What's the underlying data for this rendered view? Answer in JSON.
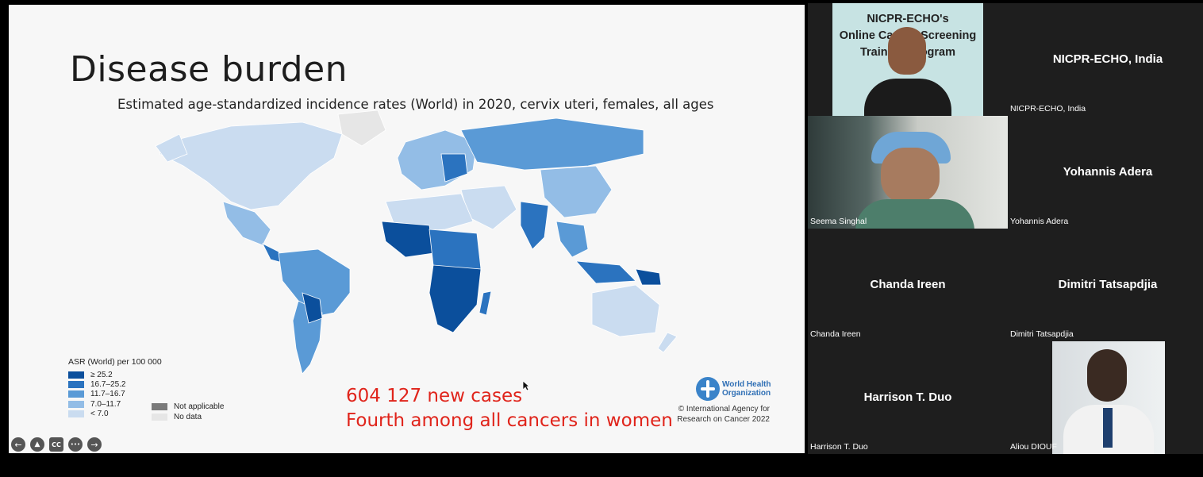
{
  "slide": {
    "title": "Disease burden",
    "map_title": "Estimated age-standardized incidence rates (World) in 2020, cervix uteri, females, all ages",
    "legend": {
      "title": "ASR (World) per 100 000",
      "items": [
        {
          "label": "≥ 25.2",
          "color": "#0b4f9c"
        },
        {
          "label": "16.7–25.2",
          "color": "#2b73bf"
        },
        {
          "label": "11.7–16.7",
          "color": "#5a9ad6"
        },
        {
          "label": "7.0–11.7",
          "color": "#93bde6"
        },
        {
          "label": "< 7.0",
          "color": "#cadcf0"
        }
      ],
      "extra": [
        {
          "label": "Not applicable",
          "color": "#7a7a7a"
        },
        {
          "label": "No data",
          "color": "#e6e6e6"
        }
      ]
    },
    "highlight_line1": "604 127 new cases",
    "highlight_line2": "Fourth among all cancers in women",
    "who_line1": "World Health",
    "who_line2": "Organization",
    "copyright_line1": "© International Agency for",
    "copyright_line2": "Research on Cancer 2022",
    "controls": {
      "back": "←",
      "pointer": "▲",
      "cc": "CC",
      "more": "•••",
      "next": "→"
    }
  },
  "participants": [
    {
      "display": "NICPR-ECHO, India",
      "label": "NICPR-ECHO, India",
      "banner_line1": "NICPR-ECHO's",
      "banner_line2": "Online Cancer Screening",
      "banner_line3": "Training Program"
    },
    {
      "display": "Yohannis Adera",
      "label": "Yohannis Adera"
    },
    {
      "label": "Seema Singhal"
    },
    {
      "display": "Chanda Ireen",
      "label": "Chanda Ireen"
    },
    {
      "display": "Dimitri Tatsapdjia",
      "label": "Dimitri Tatsapdjia"
    },
    {
      "display": "Harrison T. Duo",
      "label": "Harrison T. Duo"
    },
    {
      "label": "Aliou DIOUF"
    }
  ]
}
